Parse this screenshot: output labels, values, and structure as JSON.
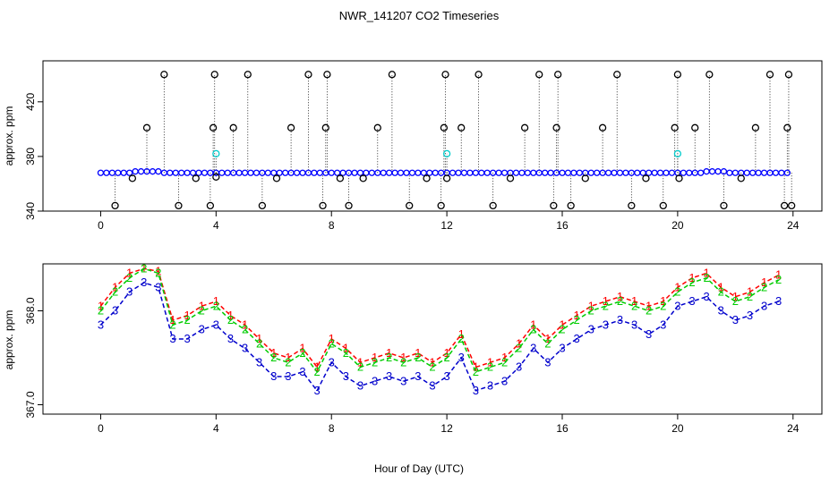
{
  "title": "NWR_141207  CO2 Timeseries",
  "xlabel": "Hour of Day (UTC)",
  "chart_data": [
    {
      "type": "scatter",
      "ylabel": "approx. ppm",
      "xlim": [
        -2,
        25
      ],
      "ylim": [
        340,
        450
      ],
      "xticks": [
        0,
        4,
        8,
        12,
        16,
        20,
        24
      ],
      "yticks": [
        340,
        380,
        420
      ],
      "baseline": 368,
      "series": [
        {
          "name": "baseline",
          "color": "#0000ff",
          "marker": "o",
          "x": [
            0.0,
            0.2,
            0.4,
            0.6,
            0.8,
            1.0,
            1.2,
            1.4,
            1.6,
            1.8,
            2.0,
            2.2,
            2.4,
            2.6,
            2.8,
            3.0,
            3.2,
            3.4,
            3.6,
            3.8,
            4.0,
            4.2,
            4.4,
            4.6,
            4.8,
            5.0,
            5.2,
            5.4,
            5.6,
            5.8,
            6.0,
            6.2,
            6.4,
            6.6,
            6.8,
            7.0,
            7.2,
            7.4,
            7.6,
            7.8,
            8.0,
            8.2,
            8.4,
            8.6,
            8.8,
            9.0,
            9.2,
            9.4,
            9.6,
            9.8,
            10.0,
            10.2,
            10.4,
            10.6,
            10.8,
            11.0,
            11.2,
            11.4,
            11.6,
            11.8,
            12.0,
            12.2,
            12.4,
            12.6,
            12.8,
            13.0,
            13.2,
            13.4,
            13.6,
            13.8,
            14.0,
            14.2,
            14.4,
            14.6,
            14.8,
            15.0,
            15.2,
            15.4,
            15.6,
            15.8,
            16.0,
            16.2,
            16.4,
            16.6,
            16.8,
            17.0,
            17.2,
            17.4,
            17.6,
            17.8,
            18.0,
            18.2,
            18.4,
            18.6,
            18.8,
            19.0,
            19.2,
            19.4,
            19.6,
            19.8,
            20.0,
            20.2,
            20.4,
            20.6,
            20.8,
            21.0,
            21.2,
            21.4,
            21.6,
            21.8,
            22.0,
            22.2,
            22.4,
            22.6,
            22.8,
            23.0,
            23.2,
            23.4,
            23.6,
            23.8
          ],
          "y": [
            368,
            368,
            368,
            368,
            368,
            368,
            369,
            369,
            369,
            369,
            369,
            368,
            368,
            368,
            368,
            368,
            368,
            368,
            368,
            368,
            368,
            368,
            368,
            368,
            368,
            368,
            368,
            368,
            368,
            368,
            368,
            368,
            368,
            368,
            368,
            368,
            368,
            368,
            368,
            368,
            368,
            368,
            368,
            368,
            368,
            368,
            368,
            368,
            368,
            368,
            368,
            368,
            368,
            368,
            368,
            368,
            368,
            368,
            368,
            368,
            368,
            368,
            368,
            368,
            368,
            368,
            368,
            368,
            368,
            368,
            368,
            368,
            368,
            368,
            368,
            368,
            368,
            368,
            368,
            368,
            368,
            368,
            368,
            368,
            368,
            368,
            368,
            368,
            368,
            368,
            368,
            368,
            368,
            368,
            368,
            368,
            368,
            368,
            368,
            368,
            368,
            368,
            368,
            368,
            368,
            369,
            369,
            369,
            369,
            368,
            368,
            368,
            368,
            368,
            368,
            368,
            368,
            368,
            368,
            368
          ]
        },
        {
          "name": "outliers",
          "color": "#000000",
          "marker": "o",
          "x": [
            0.5,
            1.1,
            1.6,
            2.2,
            2.7,
            3.3,
            3.8,
            3.9,
            3.95,
            4.0,
            4.6,
            5.1,
            5.6,
            6.1,
            6.6,
            7.2,
            7.7,
            7.8,
            7.85,
            8.3,
            8.6,
            9.1,
            9.6,
            10.1,
            10.7,
            11.3,
            11.8,
            11.9,
            11.95,
            12.0,
            12.5,
            13.1,
            13.6,
            14.2,
            14.7,
            15.2,
            15.7,
            15.8,
            15.85,
            16.3,
            16.8,
            17.4,
            17.9,
            18.4,
            18.9,
            19.5,
            19.9,
            20.0,
            20.05,
            20.6,
            21.1,
            21.6,
            22.2,
            22.7,
            23.2,
            23.7,
            23.8,
            23.85,
            23.95
          ],
          "y": [
            344,
            364,
            401,
            440,
            344,
            364,
            344,
            401,
            440,
            365,
            401,
            440,
            344,
            364,
            401,
            440,
            344,
            401,
            440,
            364,
            344,
            364,
            401,
            440,
            344,
            364,
            344,
            401,
            440,
            364,
            401,
            440,
            344,
            364,
            401,
            440,
            344,
            401,
            440,
            344,
            364,
            401,
            440,
            344,
            364,
            344,
            401,
            440,
            364,
            401,
            440,
            344,
            364,
            401,
            440,
            344,
            401,
            440,
            344
          ]
        },
        {
          "name": "flagged",
          "color": "#00cccc",
          "marker": "o",
          "x": [
            4.0,
            12.0,
            20.0
          ],
          "y": [
            382,
            382,
            382
          ]
        }
      ]
    },
    {
      "type": "line",
      "ylabel": "approx. ppm",
      "xlim": [
        -2,
        25
      ],
      "ylim": [
        366.9,
        368.5
      ],
      "xticks": [
        0,
        4,
        8,
        12,
        16,
        20,
        24
      ],
      "yticks": [
        367.0,
        368.0
      ],
      "x": [
        0.0,
        0.5,
        1.0,
        1.5,
        2.0,
        2.5,
        3.0,
        3.5,
        4.0,
        4.5,
        5.0,
        5.5,
        6.0,
        6.5,
        7.0,
        7.5,
        8.0,
        8.5,
        9.0,
        9.5,
        10.0,
        10.5,
        11.0,
        11.5,
        12.0,
        12.5,
        13.0,
        13.5,
        14.0,
        14.5,
        15.0,
        15.5,
        16.0,
        16.5,
        17.0,
        17.5,
        18.0,
        18.5,
        19.0,
        19.5,
        20.0,
        20.5,
        21.0,
        21.5,
        22.0,
        22.5,
        23.0,
        23.5
      ],
      "series": [
        {
          "name": "1",
          "label": "1",
          "color": "#ff0000",
          "values": [
            368.05,
            368.25,
            368.4,
            368.45,
            368.42,
            367.9,
            367.95,
            368.05,
            368.1,
            367.95,
            367.85,
            367.7,
            367.55,
            367.5,
            367.6,
            367.4,
            367.7,
            367.6,
            367.45,
            367.5,
            367.55,
            367.5,
            367.55,
            367.45,
            367.55,
            367.75,
            367.4,
            367.45,
            367.5,
            367.65,
            367.85,
            367.7,
            367.85,
            367.95,
            368.05,
            368.1,
            368.15,
            368.1,
            368.05,
            368.1,
            368.25,
            368.35,
            368.4,
            368.25,
            368.15,
            368.2,
            368.3,
            368.38
          ]
        },
        {
          "name": "2",
          "label": "2",
          "color": "#00cc00",
          "values": [
            368.0,
            368.2,
            368.35,
            368.45,
            368.4,
            367.85,
            367.9,
            368.0,
            368.05,
            367.9,
            367.8,
            367.65,
            367.5,
            367.45,
            367.55,
            367.35,
            367.65,
            367.55,
            367.4,
            367.45,
            367.5,
            367.45,
            367.5,
            367.4,
            367.5,
            367.7,
            367.35,
            367.4,
            367.45,
            367.6,
            367.8,
            367.65,
            367.8,
            367.9,
            368.0,
            368.05,
            368.1,
            368.05,
            368.0,
            368.05,
            368.2,
            368.3,
            368.35,
            368.2,
            368.1,
            368.15,
            368.25,
            368.33
          ]
        },
        {
          "name": "3",
          "label": "3",
          "color": "#0000cc",
          "values": [
            367.85,
            368.0,
            368.2,
            368.3,
            368.25,
            367.7,
            367.7,
            367.8,
            367.85,
            367.7,
            367.6,
            367.45,
            367.3,
            367.3,
            367.35,
            367.15,
            367.45,
            367.3,
            367.2,
            367.25,
            367.3,
            367.25,
            367.3,
            367.2,
            367.3,
            367.5,
            367.15,
            367.2,
            367.25,
            367.4,
            367.6,
            367.45,
            367.6,
            367.7,
            367.8,
            367.85,
            367.9,
            367.85,
            367.75,
            367.85,
            368.05,
            368.1,
            368.15,
            368.0,
            367.9,
            367.95,
            368.05,
            368.1
          ]
        }
      ]
    }
  ]
}
